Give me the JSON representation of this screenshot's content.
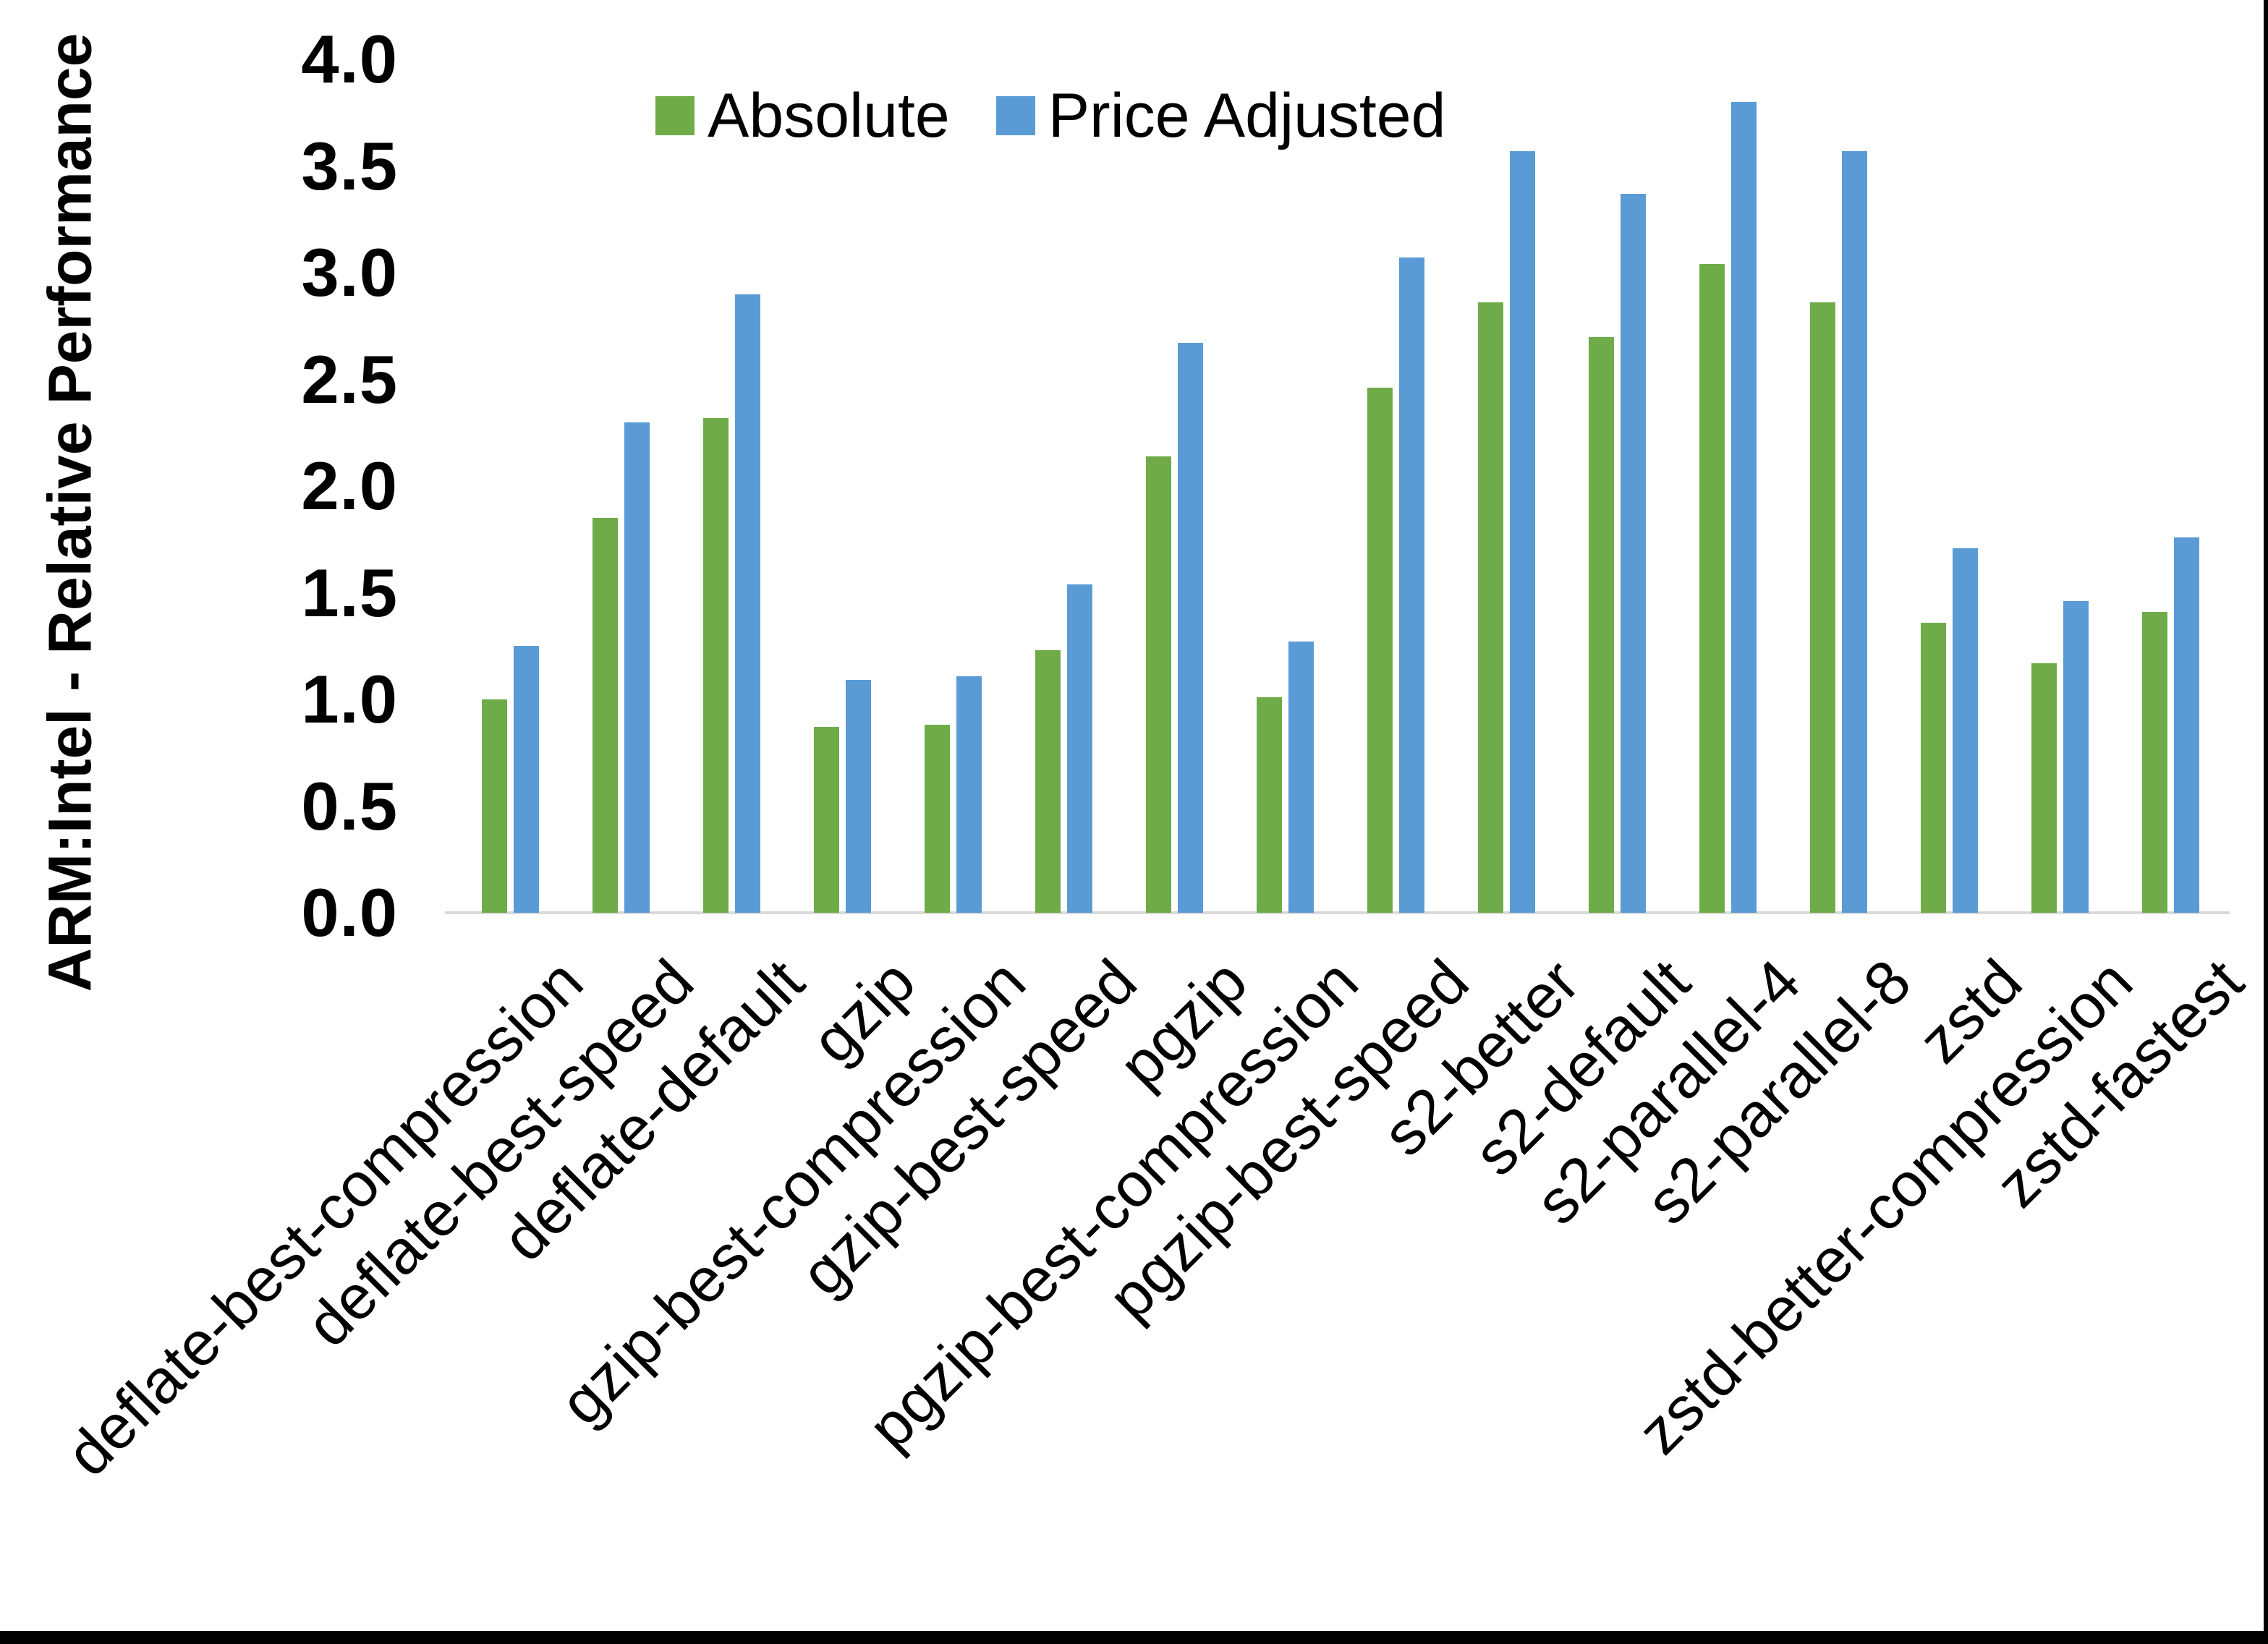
{
  "chart_data": {
    "type": "bar",
    "title": "",
    "ylabel": "ARM:Intel - Relative Performance",
    "xlabel": "",
    "ylim": [
      0.0,
      4.0
    ],
    "ytick_step": 0.5,
    "yticks": [
      "4.0",
      "3.5",
      "3.0",
      "2.5",
      "2.0",
      "1.5",
      "1.0",
      "0.5",
      "0.0"
    ],
    "grid": false,
    "legend_position": "top-center",
    "axis_line_color": "#d9d9d9",
    "categories": [
      "deflate-best-compression",
      "deflate-best-speed",
      "deflate-default",
      "gzip",
      "gzip-best-compression",
      "gzip-best-speed",
      "pgzip",
      "pgzip-best-compression",
      "pgzip-best-speed",
      "s2-better",
      "s2-default",
      "s2-parallel-4",
      "s2-parallel-8",
      "zstd",
      "zstd-better-compression",
      "zstd-fastest"
    ],
    "series": [
      {
        "name": "Absolute",
        "color": "#6fac49",
        "values": [
          1.0,
          1.85,
          2.32,
          0.87,
          0.88,
          1.23,
          2.14,
          1.01,
          2.46,
          2.86,
          2.7,
          3.04,
          2.86,
          1.36,
          1.17,
          1.41
        ]
      },
      {
        "name": "Price Adjusted",
        "color": "#5b9bd5",
        "values": [
          1.25,
          2.3,
          2.9,
          1.09,
          1.11,
          1.54,
          2.67,
          1.27,
          3.07,
          3.57,
          3.37,
          3.8,
          3.57,
          1.71,
          1.46,
          1.76
        ]
      }
    ]
  }
}
